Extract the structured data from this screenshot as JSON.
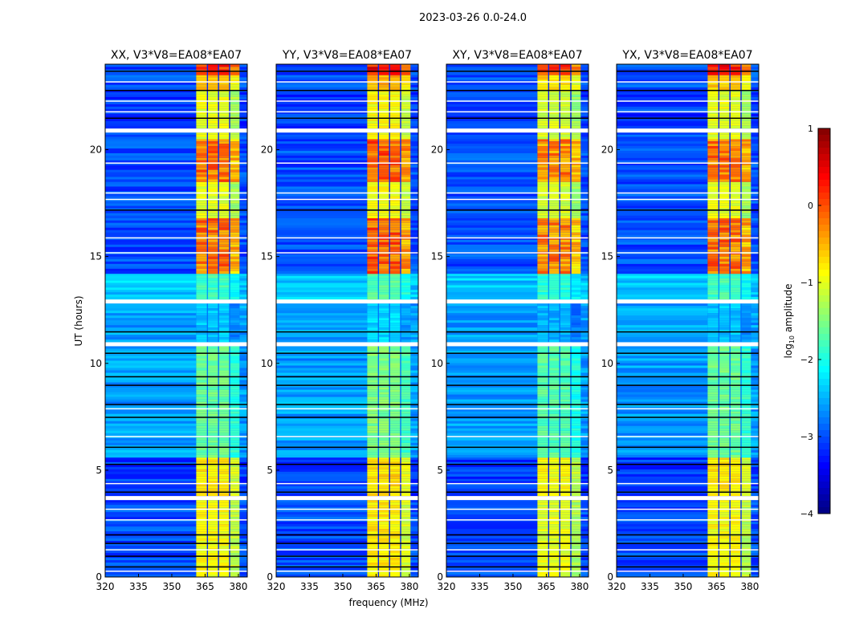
{
  "chart_data": {
    "type": "heatmap",
    "title": "2023-03-26 0.0-24.0",
    "xlabel": "frequency (MHz)",
    "ylabel": "UT (hours)",
    "xlim": [
      320,
      384
    ],
    "ylim": [
      0,
      24
    ],
    "xticks": [
      320,
      335,
      350,
      365,
      380
    ],
    "yticks": [
      0,
      5,
      10,
      15,
      20
    ],
    "colorbar": {
      "label": "log10 amplitude",
      "label_main": "log",
      "label_sub": "10",
      "label_rest": " amplitude",
      "range": [
        -4,
        1
      ],
      "ticks": [
        "1",
        "0",
        "−1",
        "−2",
        "−3",
        "−4"
      ],
      "tick_values": [
        1,
        0,
        -1,
        -2,
        -3,
        -4
      ],
      "colormap": "jet"
    },
    "panels": [
      {
        "title": "XX, V3*V8=EA08*EA07",
        "band_offset": 0.0
      },
      {
        "title": "YY, V3*V8=EA08*EA07",
        "band_offset": 0.1
      },
      {
        "title": "XY, V3*V8=EA08*EA07",
        "band_offset": -0.1
      },
      {
        "title": "YX, V3*V8=EA08*EA07",
        "band_offset": 0.0
      }
    ],
    "rfi_band_channels_mhz": [
      [
        361,
        365.8
      ],
      [
        366.3,
        370.8
      ],
      [
        371.3,
        375.8
      ],
      [
        376.3,
        380.5
      ]
    ],
    "time_segments": [
      {
        "start": 0,
        "end": 3.6,
        "background": -3.0,
        "band": -0.9
      },
      {
        "start": 3.6,
        "end": 3.8,
        "flagged": true
      },
      {
        "start": 3.8,
        "end": 5.6,
        "background": -3.1,
        "band": -0.8
      },
      {
        "start": 5.6,
        "end": 10.8,
        "background": -2.6,
        "band": -1.6
      },
      {
        "start": 10.8,
        "end": 11.0,
        "flagged": true
      },
      {
        "start": 11.0,
        "end": 12.8,
        "background": -2.6,
        "band": -2.4
      },
      {
        "start": 12.8,
        "end": 13.0,
        "flagged": true
      },
      {
        "start": 13.0,
        "end": 14.2,
        "background": -2.4,
        "band": -1.8
      },
      {
        "start": 14.2,
        "end": 16.8,
        "background": -3.0,
        "band": -0.2
      },
      {
        "start": 16.8,
        "end": 18.5,
        "background": -3.0,
        "band": -1.0
      },
      {
        "start": 18.5,
        "end": 20.5,
        "background": -3.0,
        "band": -0.2
      },
      {
        "start": 20.5,
        "end": 20.8,
        "background": -3.0,
        "band": -1.0
      },
      {
        "start": 20.8,
        "end": 21.0,
        "flagged": true
      },
      {
        "start": 21.0,
        "end": 22.8,
        "background": -3.1,
        "band": -1.0
      },
      {
        "start": 22.8,
        "end": 23.5,
        "background": -3.0,
        "band": -0.6
      },
      {
        "start": 23.5,
        "end": 24.0,
        "background": -3.0,
        "band": 0.2
      }
    ],
    "dropout_hours": [
      0.5,
      1.0,
      1.6,
      2.0,
      4.0,
      5.3,
      6.1,
      7.5,
      8.1,
      9.0,
      9.4,
      10.5,
      11.5,
      17.2,
      21.5,
      22.8,
      23.7
    ],
    "gap_hours": [
      0.3,
      1.3,
      2.7,
      3.2,
      4.4,
      6.6,
      7.9,
      15.2,
      15.9,
      17.7,
      18.0,
      19.4,
      21.8,
      22.3,
      23.2
    ]
  }
}
